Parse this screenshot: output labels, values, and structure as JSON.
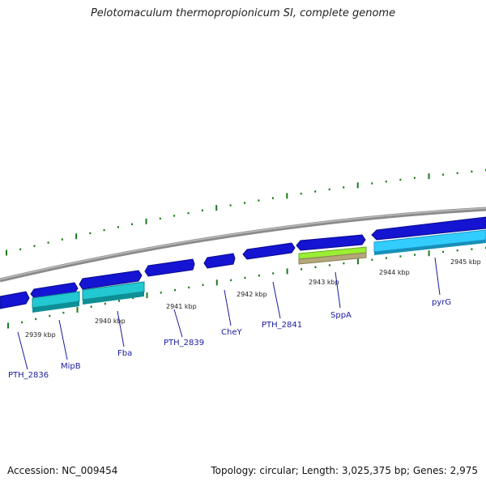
{
  "title": "Pelotomaculum thermopropionicum SI, complete genome",
  "footer": {
    "accession": "Accession: NC_009454",
    "topology": "Topology: circular; Length: 3,025,375 bp; Genes: 2,975"
  },
  "colors": {
    "backbone": "#8a8a8a",
    "gene_dark": "#1414d2",
    "gene_cyan": "#22c8d2",
    "gene_lightblue": "#33ccff",
    "gene_green": "#99ee33",
    "gene_tan": "#b4a77a",
    "ticks": "#1a7a1a",
    "label_line": "#1a1aa0"
  },
  "kbp_labels": [
    "2939 kbp",
    "2940 kbp",
    "2941 kbp",
    "2942 kbp",
    "2943 kbp",
    "2944 kbp",
    "2945 kbp"
  ],
  "gene_labels": [
    "PTH_2836",
    "MipB",
    "Fba",
    "PTH_2839",
    "CheY",
    "PTH_2841",
    "SppA",
    "pyrG"
  ]
}
